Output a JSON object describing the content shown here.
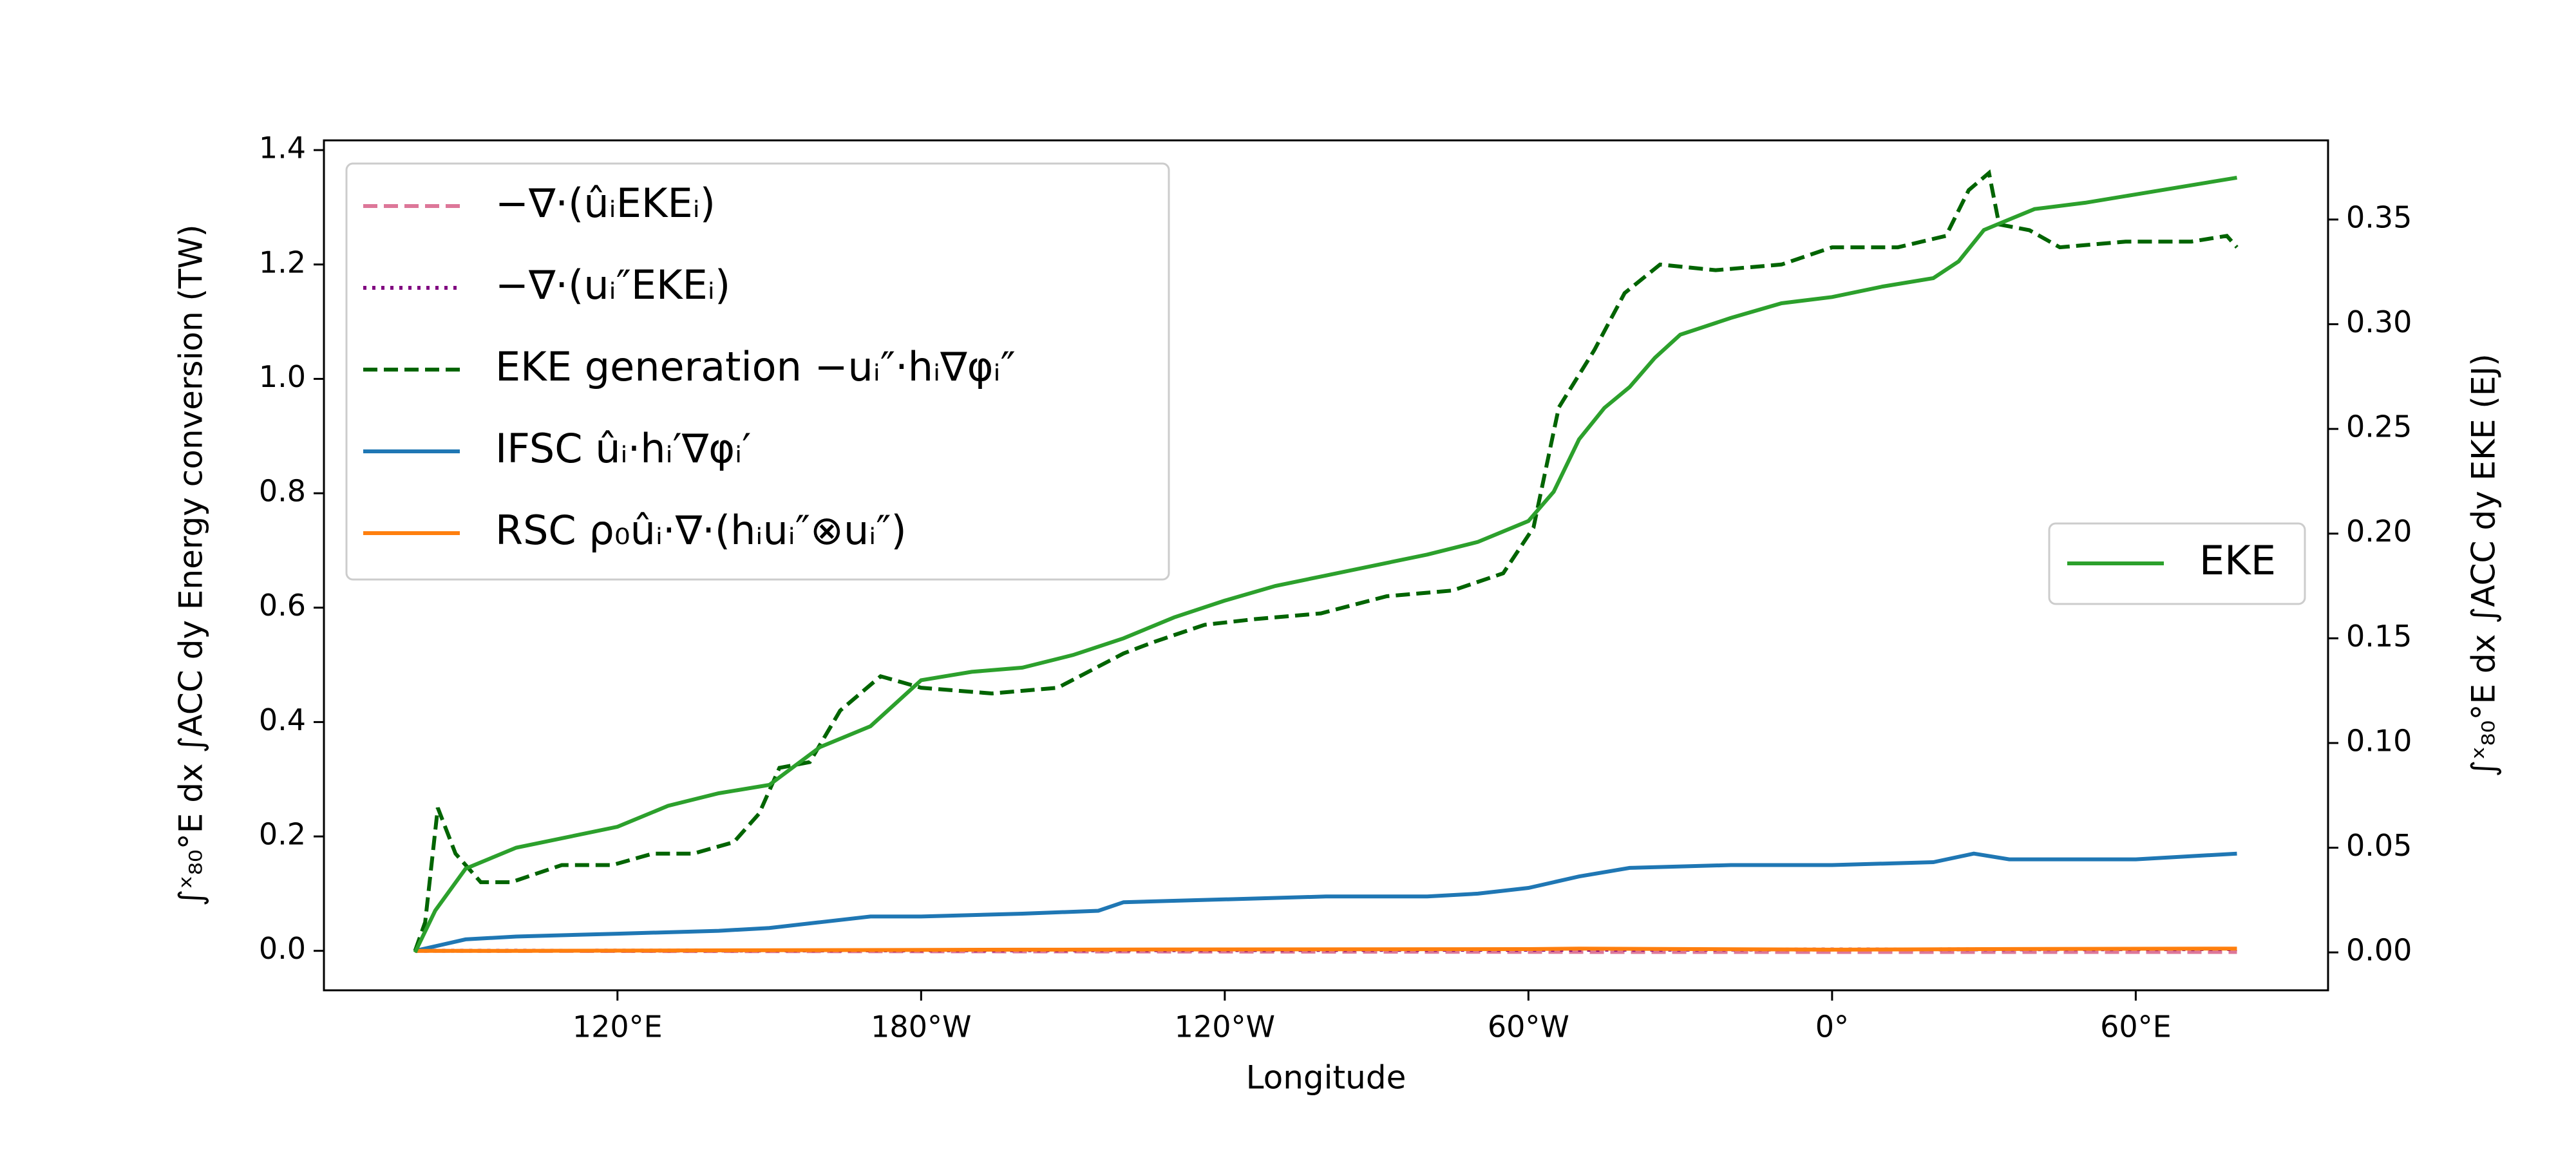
{
  "chart_data": {
    "type": "line",
    "xlabel": "Longitude",
    "ylabel": "∫ˣ₈₀°E dx ∫ACC dy Energy conversion   (TW)",
    "y2label": "∫ˣ₈₀°E dx ∫ACC dy EKE  (EJ)",
    "xlim": [
      62,
      458
    ],
    "xticks": [
      {
        "value": 120,
        "label": "120°E"
      },
      {
        "value": 180,
        "label": "180°W"
      },
      {
        "value": 240,
        "label": "120°W"
      },
      {
        "value": 300,
        "label": "60°W"
      },
      {
        "value": 360,
        "label": "0°"
      },
      {
        "value": 420,
        "label": "60°E"
      }
    ],
    "ylim": [
      -0.069,
      1.417
    ],
    "yticks": [
      {
        "value": 0,
        "label": "0.0"
      },
      0.2,
      0.4,
      0.6,
      0.8,
      {
        "value": 1,
        "label": "1.0"
      },
      1.2,
      1.4
    ],
    "y2lim": [
      -0.0181,
      0.3878
    ],
    "y2ticks": [
      {
        "value": 0,
        "label": "0.00"
      },
      {
        "value": 0.05,
        "label": "0.05"
      },
      {
        "value": 0.1,
        "label": "0.10"
      },
      {
        "value": 0.15,
        "label": "0.15"
      },
      {
        "value": 0.2,
        "label": "0.20"
      },
      {
        "value": 0.25,
        "label": "0.25"
      },
      {
        "value": 0.3,
        "label": "0.30"
      },
      {
        "value": 0.35,
        "label": "0.35"
      }
    ],
    "series": [
      {
        "name": "−∇·(ûᵢEKEᵢ)",
        "color": "#dd7799",
        "linestyle": "dashed",
        "x": [
          80,
          200,
          320,
          440
        ],
        "values": [
          0,
          -0.001,
          -0.002,
          -0.002
        ]
      },
      {
        "name": "−∇·(uᵢ″EKEᵢ)",
        "color": "#800080",
        "linestyle": "dotted",
        "x": [
          80,
          200,
          320,
          440
        ],
        "values": [
          0,
          0.001,
          0.002,
          0.003
        ]
      },
      {
        "name": "EKE generation −uᵢ″·hᵢ∇φᵢ″",
        "color": "#006400",
        "linestyle": "dashed",
        "x": [
          80,
          82,
          84.5,
          88,
          93,
          99,
          109,
          119,
          127,
          135,
          143,
          148,
          152,
          158,
          164,
          172,
          180,
          194,
          207,
          220,
          226,
          236,
          246,
          259,
          272,
          285,
          295,
          301,
          306,
          313,
          319,
          326,
          337,
          350,
          360,
          373,
          382.5,
          387,
          391,
          393,
          399,
          405,
          418,
          431,
          438,
          440
        ],
        "values": [
          0,
          0.05,
          0.25,
          0.17,
          0.12,
          0.12,
          0.15,
          0.15,
          0.17,
          0.17,
          0.19,
          0.24,
          0.32,
          0.33,
          0.42,
          0.48,
          0.46,
          0.45,
          0.46,
          0.52,
          0.54,
          0.57,
          0.58,
          0.59,
          0.62,
          0.63,
          0.66,
          0.74,
          0.95,
          1.05,
          1.15,
          1.2,
          1.19,
          1.2,
          1.23,
          1.23,
          1.25,
          1.33,
          1.36,
          1.27,
          1.26,
          1.23,
          1.24,
          1.24,
          1.25,
          1.23
        ]
      },
      {
        "name": "IFSC ûᵢ·hᵢ′∇φᵢ′",
        "color": "#1f77b4",
        "linestyle": "solid",
        "x": [
          80,
          85,
          90,
          100,
          120,
          140,
          150,
          160,
          170,
          180,
          200,
          215,
          220,
          240,
          260,
          280,
          290,
          300,
          310,
          320,
          340,
          360,
          380,
          388,
          395,
          420,
          440
        ],
        "values": [
          0,
          0.01,
          0.02,
          0.025,
          0.03,
          0.035,
          0.04,
          0.05,
          0.06,
          0.06,
          0.065,
          0.07,
          0.085,
          0.09,
          0.095,
          0.095,
          0.1,
          0.11,
          0.13,
          0.145,
          0.15,
          0.15,
          0.155,
          0.17,
          0.16,
          0.16,
          0.17
        ]
      },
      {
        "name": "RSC ρ₀ûᵢ·∇·(hᵢuᵢ″⊗uᵢ″)",
        "color": "#ff7f0e",
        "linestyle": "solid",
        "x": [
          80,
          100,
          200,
          300,
          310,
          360,
          390,
          440
        ],
        "values": [
          0,
          0,
          0.002,
          0.003,
          0.004,
          0.002,
          0.003,
          0.004
        ]
      },
      {
        "name": "EKE",
        "color": "#2ca02c",
        "linestyle": "solid",
        "axis": "y2",
        "x": [
          80,
          84,
          90,
          100,
          110,
          120,
          130,
          140,
          150,
          160,
          170,
          180,
          190,
          200,
          210,
          220,
          230,
          240,
          250,
          260,
          270,
          280,
          290,
          300,
          305,
          310,
          315,
          320,
          325,
          330,
          340,
          350,
          360,
          370,
          375,
          380,
          385,
          390,
          395,
          400,
          410,
          420,
          430,
          440
        ],
        "values": [
          0,
          0.02,
          0.04,
          0.05,
          0.055,
          0.06,
          0.07,
          0.076,
          0.08,
          0.098,
          0.108,
          0.13,
          0.134,
          0.136,
          0.142,
          0.15,
          0.16,
          0.168,
          0.175,
          0.18,
          0.185,
          0.19,
          0.196,
          0.206,
          0.22,
          0.245,
          0.26,
          0.27,
          0.284,
          0.295,
          0.303,
          0.31,
          0.313,
          0.318,
          0.32,
          0.322,
          0.33,
          0.345,
          0.35,
          0.355,
          0.358,
          0.362,
          0.366,
          0.37
        ]
      }
    ]
  }
}
